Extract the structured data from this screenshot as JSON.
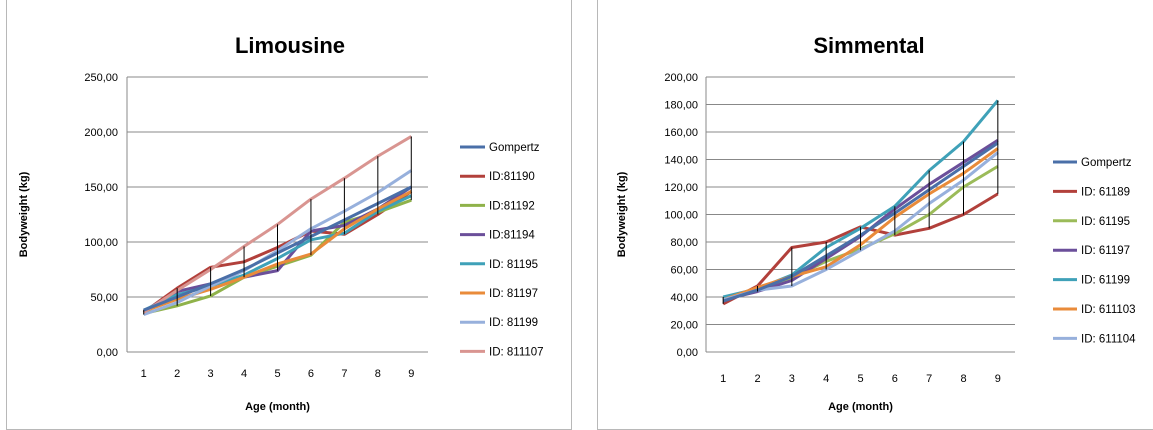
{
  "chart_data": [
    {
      "type": "line",
      "title": "Limousine",
      "xlabel": "Age (month)",
      "ylabel": "Bodyweight (kg)",
      "categories": [
        "1",
        "2",
        "3",
        "4",
        "5",
        "6",
        "7",
        "8",
        "9"
      ],
      "ylim": [
        0,
        250
      ],
      "yticks": [
        "0,00",
        "50,00",
        "100,00",
        "150,00",
        "200,00",
        "250,00"
      ],
      "grid": true,
      "legend": "right",
      "error_bars": {
        "color": "#000000",
        "low_from": "series_min",
        "high_from": "series_max"
      },
      "series": [
        {
          "name": "Gompertz",
          "color": "#4a6fa8",
          "values": [
            38,
            50,
            62,
            75,
            90,
            105,
            120,
            135,
            150
          ]
        },
        {
          "name": "ID:81190",
          "color": "#b2403b",
          "values": [
            36,
            58,
            77,
            82,
            95,
            110,
            107,
            125,
            146
          ]
        },
        {
          "name": "ID:81192",
          "color": "#8fb24a",
          "values": [
            35,
            42,
            51,
            68,
            78,
            88,
            118,
            127,
            138
          ]
        },
        {
          "name": "ID:81194",
          "color": "#6b4f9a",
          "values": [
            37,
            55,
            62,
            68,
            74,
            110,
            115,
            130,
            150
          ]
        },
        {
          "name": "ID: 81195",
          "color": "#3fa1b8",
          "values": [
            38,
            52,
            60,
            70,
            85,
            102,
            108,
            128,
            142
          ]
        },
        {
          "name": "ID: 81197",
          "color": "#e98b3a",
          "values": [
            37,
            48,
            57,
            68,
            80,
            89,
            112,
            130,
            146
          ]
        },
        {
          "name": "ID: 81199",
          "color": "#97b0dc",
          "values": [
            34,
            45,
            60,
            74,
            92,
            112,
            128,
            145,
            165
          ]
        },
        {
          "name": "ID: 811107",
          "color": "#d99591",
          "values": [
            36,
            56,
            75,
            96,
            116,
            139,
            158,
            178,
            196
          ]
        }
      ]
    },
    {
      "type": "line",
      "title": "Simmental",
      "xlabel": "Age (month)",
      "ylabel": "Bodyweight (kg)",
      "categories": [
        "1",
        "2",
        "3",
        "4",
        "5",
        "6",
        "7",
        "8",
        "9"
      ],
      "ylim": [
        0,
        200
      ],
      "yticks": [
        "0,00",
        "20,00",
        "40,00",
        "60,00",
        "80,00",
        "100,00",
        "120,00",
        "140,00",
        "160,00",
        "180,00",
        "200,00"
      ],
      "grid": true,
      "legend": "right",
      "error_bars": {
        "color": "#000000",
        "low_from": "series_min",
        "high_from": "series_max"
      },
      "series": [
        {
          "name": "Gompertz",
          "color": "#4a6fa8",
          "values": [
            37,
            45,
            55,
            70,
            85,
            101,
            118,
            135,
            152
          ]
        },
        {
          "name": "ID: 61189",
          "color": "#b2403b",
          "values": [
            35,
            48,
            76,
            80,
            91,
            85,
            90,
            100,
            115
          ]
        },
        {
          "name": "ID: 61195",
          "color": "#9bbb59",
          "values": [
            38,
            46,
            54,
            66,
            75,
            86,
            100,
            120,
            135
          ]
        },
        {
          "name": "ID: 61197",
          "color": "#6b4f9a",
          "values": [
            38,
            44,
            52,
            68,
            84,
            104,
            122,
            138,
            154
          ]
        },
        {
          "name": "ID: 61199",
          "color": "#3fa1b8",
          "values": [
            40,
            46,
            56,
            76,
            90,
            106,
            132,
            153,
            183
          ]
        },
        {
          "name": "ID: 611103",
          "color": "#e98b3a",
          "values": [
            38,
            47,
            55,
            62,
            78,
            98,
            115,
            130,
            148
          ]
        },
        {
          "name": "ID: 611104",
          "color": "#97b0dc",
          "values": [
            38,
            45,
            48,
            60,
            74,
            88,
            108,
            125,
            145
          ]
        }
      ]
    }
  ]
}
